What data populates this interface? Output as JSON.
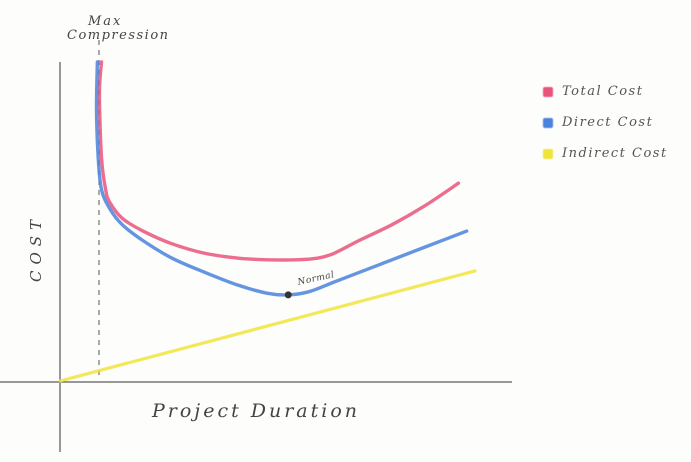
{
  "chart_data": {
    "type": "line",
    "title": "",
    "xlabel": "Project Duration",
    "ylabel": "COST",
    "xlim": [
      0,
      100
    ],
    "ylim": [
      0,
      100
    ],
    "grid": false,
    "legend_position": "top-right",
    "annotations": {
      "max_compression_line1": "Max",
      "max_compression_line2": "Compression",
      "max_compression_x": 9,
      "normal_label": "Normal",
      "normal_point": {
        "x": 55,
        "y": 27
      }
    },
    "series": [
      {
        "name": "Total Cost",
        "color": "#e8557a",
        "x": [
          10,
          9.5,
          10,
          11,
          12,
          15,
          20,
          27,
          35,
          43,
          50,
          57,
          62,
          66,
          72,
          80,
          88,
          96
        ],
        "y": [
          100,
          90,
          70,
          60,
          56,
          51,
          47,
          43,
          40,
          38.5,
          38,
          38,
          38.5,
          40,
          44,
          49,
          55,
          62
        ]
      },
      {
        "name": "Direct Cost",
        "color": "#4a82dc",
        "x": [
          9,
          8.8,
          9.2,
          10,
          12,
          15,
          20,
          27,
          35,
          43,
          50,
          55,
          60,
          66,
          72,
          80,
          88,
          98
        ],
        "y": [
          100,
          85,
          70,
          60,
          54,
          49,
          44,
          38.5,
          34,
          30,
          27.5,
          27,
          28,
          31,
          34,
          38,
          42,
          47
        ]
      },
      {
        "name": "Indirect Cost",
        "color": "#f0e43c",
        "x": [
          0,
          100
        ],
        "y": [
          0,
          34.5
        ]
      }
    ]
  }
}
